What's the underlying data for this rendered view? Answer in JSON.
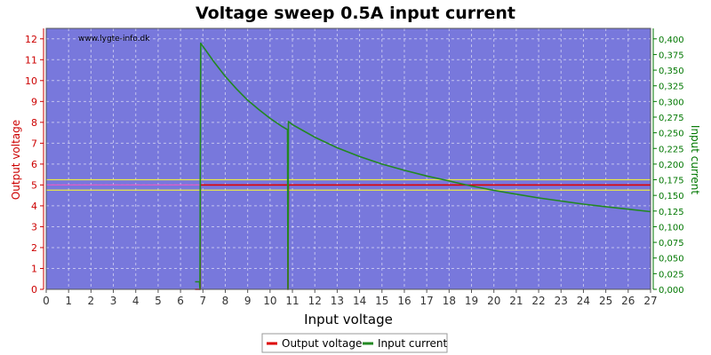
{
  "chart_data": {
    "type": "line",
    "title": "Voltage sweep 0.5A input current",
    "xlabel": "Input voltage",
    "ylabel_left": "Output voltage",
    "ylabel_right": "Input current",
    "watermark": "www.lygte-info.dk",
    "xlim": [
      0,
      27
    ],
    "ylim_left": [
      0,
      12.5
    ],
    "ylim_right": [
      0,
      0.4167
    ],
    "x_ticks": [
      "0",
      "1",
      "2",
      "3",
      "4",
      "5",
      "6",
      "7",
      "8",
      "9",
      "10",
      "11",
      "12",
      "13",
      "14",
      "15",
      "16",
      "17",
      "18",
      "19",
      "20",
      "21",
      "22",
      "23",
      "24",
      "25",
      "26",
      "27"
    ],
    "y_left_ticks": [
      "0",
      "1",
      "2",
      "3",
      "4",
      "5",
      "6",
      "7",
      "8",
      "9",
      "10",
      "11",
      "12"
    ],
    "y_right_ticks": [
      "0,000",
      "0,025",
      "0,050",
      "0,075",
      "0,100",
      "0,125",
      "0,150",
      "0,175",
      "0,200",
      "0,225",
      "0,250",
      "0,275",
      "0,300",
      "0,325",
      "0,350",
      "0,375",
      "0,400"
    ],
    "grid": true,
    "legend_position": "bottom",
    "reference_lines": [
      {
        "axis": "left",
        "value": 5.25,
        "color": "#e8e84a"
      },
      {
        "axis": "left",
        "value": 5.0,
        "color": "#e05cc8"
      },
      {
        "axis": "left",
        "value": 4.75,
        "color": "#e8e84a"
      }
    ],
    "series": [
      {
        "name": "Output voltage",
        "axis": "left",
        "color": "#dd0000",
        "x": [
          6.65,
          6.88,
          6.88,
          6.9,
          10.78,
          10.8,
          10.8,
          10.82,
          27
        ],
        "y": [
          0,
          0,
          5.0,
          5.0,
          5.0,
          5.0,
          0,
          5.0,
          5.0
        ]
      },
      {
        "name": "Input current",
        "axis": "right",
        "color": "#228822",
        "x": [
          6.65,
          6.85,
          6.87,
          6.9,
          7.0,
          7.5,
          8.0,
          8.5,
          9.0,
          9.5,
          10.0,
          10.5,
          10.78,
          10.8,
          10.82,
          11.0,
          11.5,
          12.0,
          13.0,
          14.0,
          15.0,
          16.0,
          17.0,
          18.0,
          19.0,
          20.0,
          21.0,
          22.0,
          23.0,
          24.0,
          25.0,
          26.0,
          27.0
        ],
        "y": [
          0.012,
          0.012,
          0.0,
          0.393,
          0.388,
          0.363,
          0.34,
          0.32,
          0.302,
          0.287,
          0.273,
          0.261,
          0.255,
          0.0,
          0.268,
          0.263,
          0.253,
          0.243,
          0.226,
          0.212,
          0.2,
          0.19,
          0.181,
          0.173,
          0.165,
          0.158,
          0.152,
          0.146,
          0.141,
          0.136,
          0.132,
          0.128,
          0.124
        ]
      }
    ]
  }
}
